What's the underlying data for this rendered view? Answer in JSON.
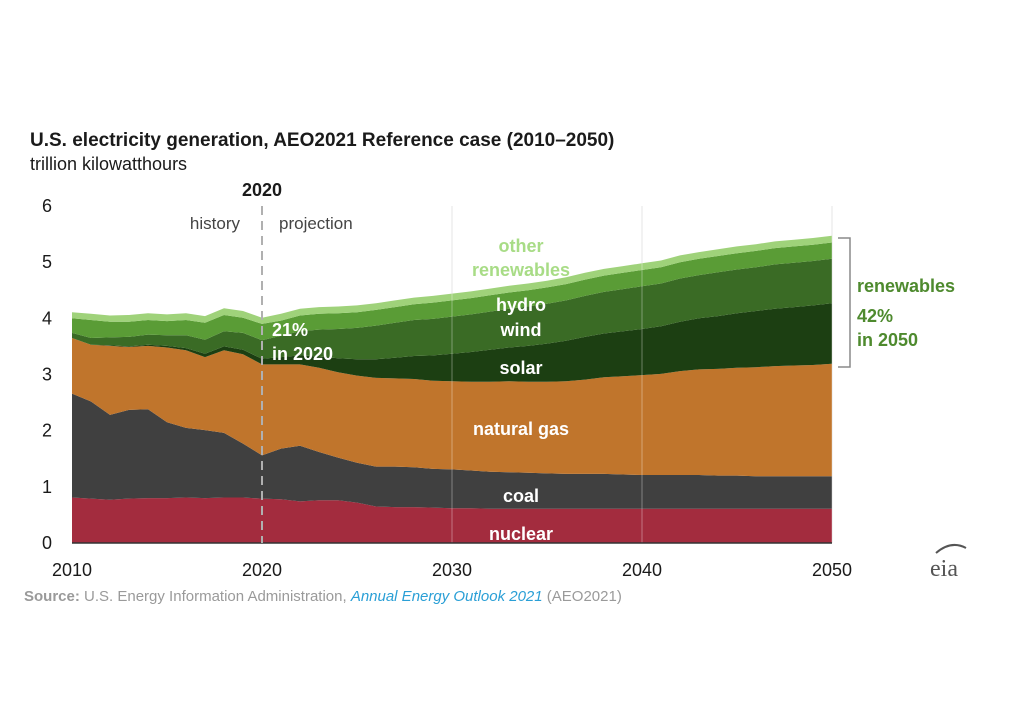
{
  "chart_data": {
    "type": "area",
    "stacked": true,
    "title": "U.S. electricity generation, AEO2021 Reference case (2010–2050)",
    "subtitle": "trillion kilowatthours",
    "x": [
      2010,
      2011,
      2012,
      2013,
      2014,
      2015,
      2016,
      2017,
      2018,
      2019,
      2020,
      2021,
      2022,
      2023,
      2024,
      2025,
      2026,
      2027,
      2028,
      2029,
      2030,
      2031,
      2032,
      2033,
      2034,
      2035,
      2036,
      2037,
      2038,
      2039,
      2040,
      2041,
      2042,
      2043,
      2044,
      2045,
      2046,
      2047,
      2048,
      2049,
      2050
    ],
    "xlim": [
      2010,
      2050
    ],
    "ylim": [
      0,
      6
    ],
    "x_ticks": [
      "2010",
      "2020",
      "2030",
      "2040",
      "2050"
    ],
    "y_ticks": [
      "0",
      "1",
      "2",
      "3",
      "4",
      "5",
      "6"
    ],
    "grid": "vertical",
    "series": [
      {
        "name": "nuclear",
        "color": "#a32c3e",
        "values": [
          0.81,
          0.79,
          0.77,
          0.79,
          0.8,
          0.8,
          0.81,
          0.8,
          0.81,
          0.81,
          0.79,
          0.78,
          0.74,
          0.76,
          0.76,
          0.72,
          0.65,
          0.64,
          0.64,
          0.63,
          0.62,
          0.62,
          0.61,
          0.61,
          0.61,
          0.61,
          0.61,
          0.61,
          0.61,
          0.61,
          0.61,
          0.61,
          0.61,
          0.61,
          0.61,
          0.61,
          0.61,
          0.61,
          0.61,
          0.61,
          0.61
        ]
      },
      {
        "name": "coal",
        "color": "#404040",
        "values": [
          1.85,
          1.73,
          1.51,
          1.58,
          1.58,
          1.35,
          1.24,
          1.21,
          1.15,
          0.96,
          0.77,
          0.9,
          0.99,
          0.86,
          0.76,
          0.71,
          0.71,
          0.72,
          0.71,
          0.69,
          0.69,
          0.67,
          0.66,
          0.65,
          0.64,
          0.63,
          0.62,
          0.62,
          0.62,
          0.61,
          0.6,
          0.6,
          0.6,
          0.6,
          0.59,
          0.59,
          0.58,
          0.58,
          0.58,
          0.58,
          0.58
        ]
      },
      {
        "name": "natural gas",
        "color": "#c0752c",
        "values": [
          0.99,
          1.01,
          1.23,
          1.12,
          1.13,
          1.33,
          1.38,
          1.3,
          1.47,
          1.59,
          1.62,
          1.5,
          1.45,
          1.5,
          1.52,
          1.55,
          1.58,
          1.57,
          1.57,
          1.57,
          1.57,
          1.58,
          1.6,
          1.62,
          1.62,
          1.63,
          1.65,
          1.68,
          1.72,
          1.75,
          1.78,
          1.8,
          1.85,
          1.88,
          1.9,
          1.92,
          1.94,
          1.96,
          1.97,
          1.98,
          2.0
        ]
      },
      {
        "name": "solar",
        "color": "#1c3f12",
        "values": [
          0.0,
          0.0,
          0.01,
          0.01,
          0.02,
          0.03,
          0.04,
          0.06,
          0.07,
          0.08,
          0.1,
          0.13,
          0.16,
          0.2,
          0.25,
          0.29,
          0.33,
          0.37,
          0.41,
          0.45,
          0.49,
          0.53,
          0.57,
          0.6,
          0.64,
          0.68,
          0.72,
          0.76,
          0.78,
          0.8,
          0.82,
          0.85,
          0.88,
          0.91,
          0.94,
          0.97,
          1.0,
          1.02,
          1.04,
          1.06,
          1.08
        ]
      },
      {
        "name": "wind",
        "color": "#3a6b25",
        "values": [
          0.09,
          0.12,
          0.14,
          0.17,
          0.18,
          0.19,
          0.23,
          0.25,
          0.27,
          0.3,
          0.33,
          0.38,
          0.43,
          0.48,
          0.52,
          0.56,
          0.6,
          0.62,
          0.64,
          0.65,
          0.66,
          0.67,
          0.68,
          0.69,
          0.7,
          0.71,
          0.72,
          0.73,
          0.74,
          0.75,
          0.76,
          0.76,
          0.77,
          0.77,
          0.78,
          0.78,
          0.78,
          0.79,
          0.79,
          0.79,
          0.79
        ]
      },
      {
        "name": "hydro",
        "color": "#5a9c36",
        "values": [
          0.26,
          0.32,
          0.28,
          0.27,
          0.26,
          0.25,
          0.27,
          0.3,
          0.29,
          0.27,
          0.29,
          0.27,
          0.28,
          0.28,
          0.28,
          0.28,
          0.28,
          0.28,
          0.28,
          0.29,
          0.29,
          0.29,
          0.29,
          0.29,
          0.29,
          0.29,
          0.29,
          0.29,
          0.29,
          0.29,
          0.29,
          0.29,
          0.29,
          0.29,
          0.29,
          0.29,
          0.29,
          0.29,
          0.29,
          0.29,
          0.29
        ]
      },
      {
        "name": "other renewables",
        "color": "#9fd27a",
        "values": [
          0.11,
          0.11,
          0.11,
          0.12,
          0.12,
          0.12,
          0.12,
          0.12,
          0.12,
          0.12,
          0.11,
          0.12,
          0.12,
          0.12,
          0.12,
          0.12,
          0.12,
          0.12,
          0.12,
          0.12,
          0.12,
          0.12,
          0.12,
          0.12,
          0.12,
          0.12,
          0.12,
          0.12,
          0.12,
          0.12,
          0.12,
          0.12,
          0.12,
          0.12,
          0.12,
          0.12,
          0.12,
          0.12,
          0.12,
          0.12,
          0.12
        ]
      }
    ],
    "divider": {
      "x": 2020,
      "label": "2020",
      "left_text": "history",
      "right_text": "projection"
    },
    "labels": {
      "other": "other",
      "renewables_word": "renewables",
      "hydro": "hydro",
      "wind": "wind",
      "solar": "solar",
      "natural_gas": "natural gas",
      "coal": "coal",
      "nuclear": "nuclear",
      "share_2020_pct": "21%",
      "share_2020_year": "in 2020"
    },
    "bracket": {
      "label": "renewables",
      "pct": "42%",
      "year": "in 2050",
      "color": "#4e8a2e"
    }
  },
  "source": {
    "label": "Source:",
    "text": " U.S. Energy Information Administration, ",
    "link": "Annual Energy Outlook 2021",
    "tail": " (AEO2021)"
  },
  "logo": {
    "text": "eia"
  }
}
